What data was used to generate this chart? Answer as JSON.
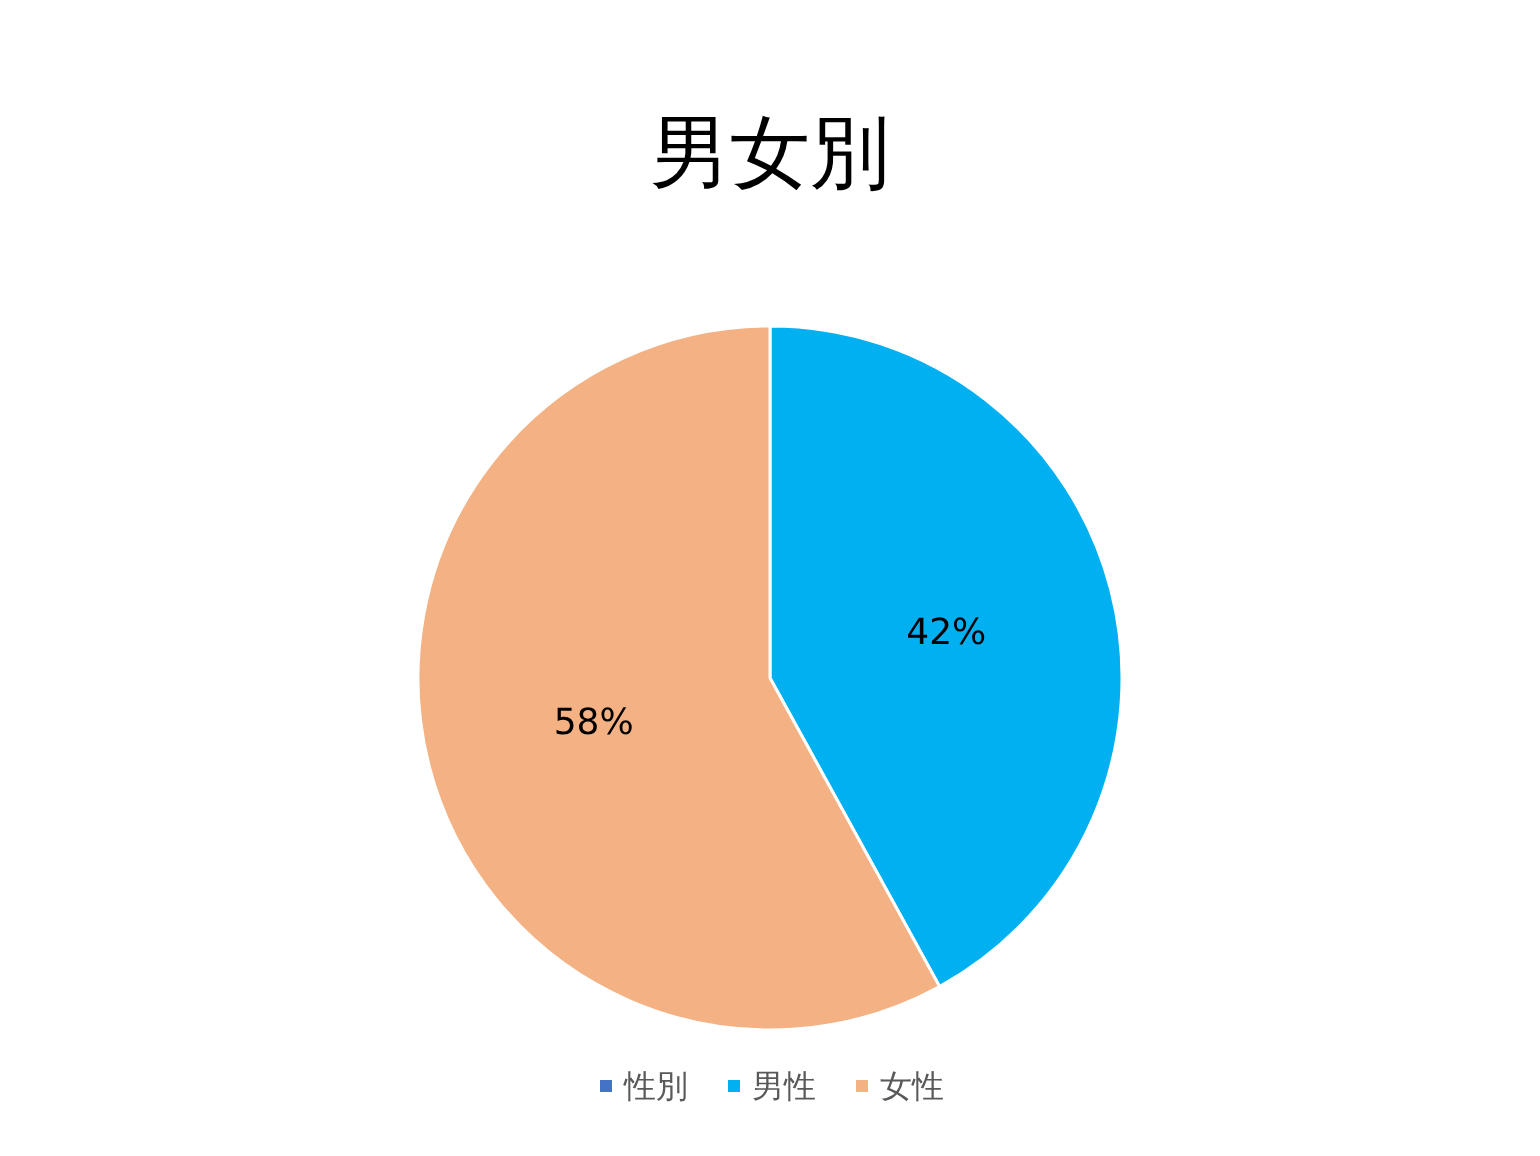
{
  "chart_data": {
    "type": "pie",
    "title": "男女別",
    "categories": [
      "性別",
      "男性",
      "女性"
    ],
    "values": [
      0,
      42,
      58
    ],
    "colors": [
      "#4472c4",
      "#00b0f0",
      "#f4b183"
    ],
    "value_labels": [
      null,
      "42%",
      "58%"
    ],
    "legend": "bottom"
  }
}
